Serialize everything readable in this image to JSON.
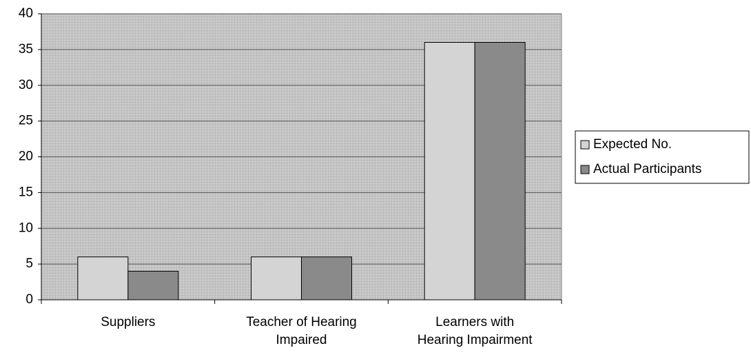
{
  "chart_data": {
    "type": "bar",
    "categories": [
      "Suppliers",
      "Teacher of Hearing Impaired",
      "Learners with Hearing Impairment"
    ],
    "series": [
      {
        "name": "Expected No.",
        "color": "#d4d4d4",
        "values": [
          6,
          6,
          36
        ]
      },
      {
        "name": "Actual Participants",
        "color": "#8a8a8a",
        "values": [
          4,
          6,
          36
        ]
      }
    ],
    "ylim": [
      0,
      40
    ],
    "yticks": [
      0,
      5,
      10,
      15,
      20,
      25,
      30,
      35,
      40
    ],
    "grid": true,
    "legend": "right"
  }
}
